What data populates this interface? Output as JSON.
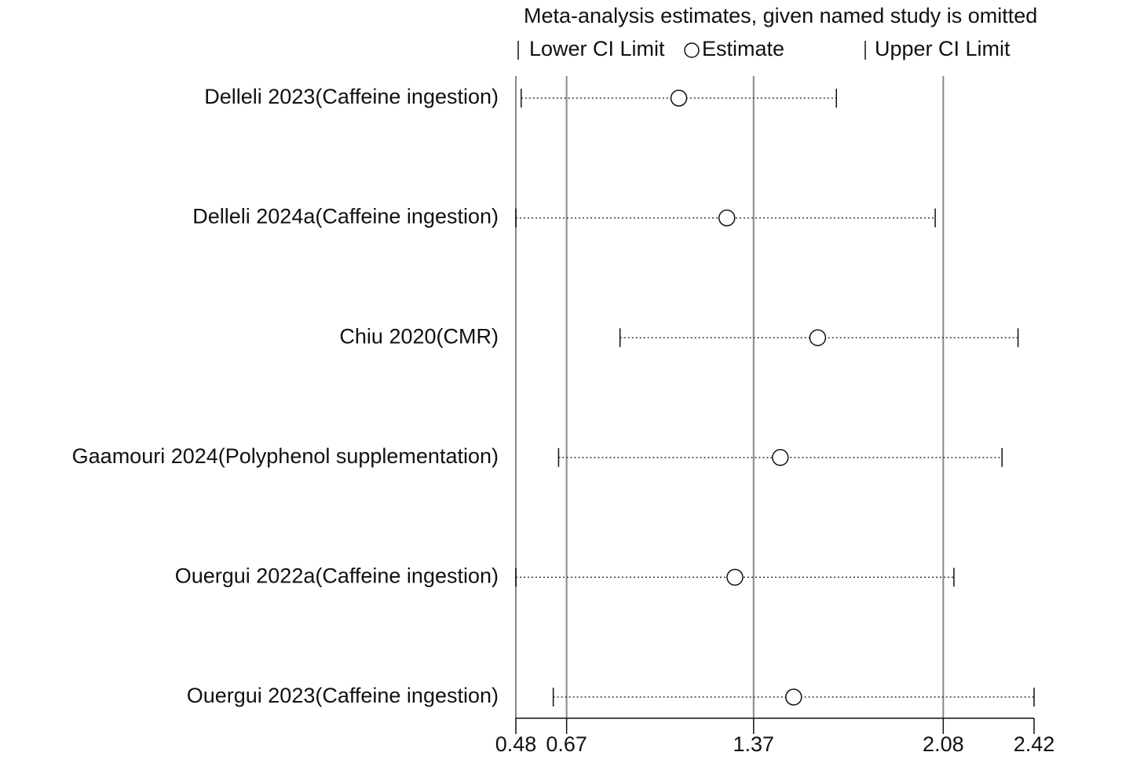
{
  "chart_data": {
    "type": "forest",
    "title": "Meta-analysis estimates, given named study is omitted",
    "legend": {
      "lower": "Lower CI Limit",
      "estimate": "Estimate",
      "upper": "Upper CI Limit"
    },
    "categories": [
      "Delleli 2023(Caffeine ingestion)",
      "Delleli 2024a(Caffeine ingestion)",
      "Chiu 2020(CMR)",
      "Gaamouri 2024(Polyphenol supplementation)",
      "Ouergui 2022a(Caffeine ingestion)",
      "Ouergui 2023(Caffeine ingestion)"
    ],
    "lower": [
      0.5,
      0.48,
      0.87,
      0.64,
      0.48,
      0.62
    ],
    "estimate": [
      1.09,
      1.27,
      1.61,
      1.47,
      1.3,
      1.52
    ],
    "upper": [
      1.68,
      2.05,
      2.36,
      2.3,
      2.12,
      2.42
    ],
    "xlim": [
      0.48,
      2.42
    ],
    "xticks": [
      0.48,
      0.67,
      1.37,
      2.08,
      2.42
    ],
    "reference_lines": [
      0.67,
      1.37,
      2.08
    ]
  }
}
